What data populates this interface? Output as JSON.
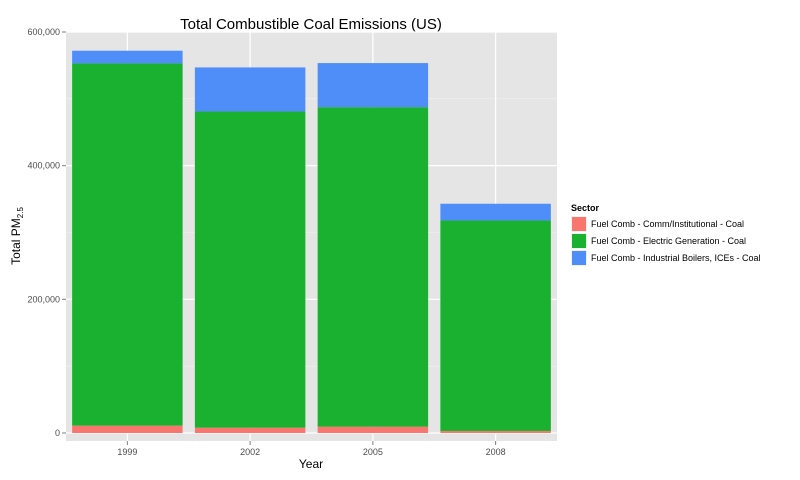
{
  "chart_data": {
    "type": "bar",
    "stacked": true,
    "title": "Total Combustible Coal Emissions (US)",
    "xlabel": "Year",
    "ylabel": "Total PM",
    "ylabel_subscript": "2.5",
    "categories": [
      "1999",
      "2002",
      "2005",
      "2008"
    ],
    "series": [
      {
        "name": "Fuel Comb - Comm/Institutional - Coal",
        "color": "#f8766d",
        "values": [
          11000,
          8000,
          9500,
          3000
        ]
      },
      {
        "name": "Fuel Comb - Electric Generation - Coal",
        "color": "#19b12f",
        "values": [
          542000,
          473000,
          478000,
          315000
        ]
      },
      {
        "name": "Fuel Comb - Industrial Boilers, ICEs - Coal",
        "color": "#4f8df8",
        "values": [
          19000,
          66000,
          66000,
          25000
        ]
      }
    ],
    "ylim": [
      -12000,
      600000
    ],
    "yticks": [
      0,
      200000,
      400000,
      600000
    ],
    "ytick_labels": [
      "0",
      "200,000",
      "400,000",
      "600,000"
    ],
    "legend": {
      "title": "Sector",
      "placement": "right"
    },
    "grid": true
  }
}
